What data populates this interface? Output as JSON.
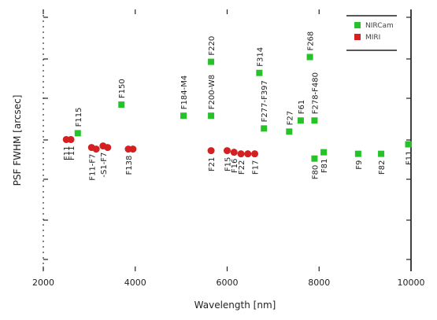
{
  "chart_data": {
    "type": "scatter",
    "xlabel": "Wavelength [nm]",
    "ylabel": "PSF FWHM [arcsec]",
    "x_ticks": [
      {
        "value": 2000,
        "label": "2000"
      },
      {
        "value": 4000,
        "label": "4000"
      },
      {
        "value": 6000,
        "label": "6000"
      },
      {
        "value": 8000,
        "label": "8000"
      },
      {
        "value": 10000,
        "label": "10000"
      }
    ],
    "xlim": [
      2000,
      10000
    ],
    "ylim": [
      -0.9,
      0.75
    ],
    "y_ticks": [],
    "series": [
      {
        "name": "NIRCam",
        "color": "#27c22a",
        "marker": "square",
        "points": [
          {
            "x": 2750,
            "y": -0.03,
            "label": "F115"
          },
          {
            "x": 3700,
            "y": 0.15,
            "label": "F150"
          },
          {
            "x": 5050,
            "y": 0.08,
            "label": "F184-M4"
          },
          {
            "x": 5650,
            "y": 0.08,
            "label": "F200-W8"
          },
          {
            "x": 5650,
            "y": 0.42,
            "label": "F220"
          },
          {
            "x": 6700,
            "y": 0.35,
            "label": "F314"
          },
          {
            "x": 6800,
            "y": 0.0,
            "label": "F277-F397"
          },
          {
            "x": 7350,
            "y": -0.02,
            "label": "F27"
          },
          {
            "x": 7600,
            "y": 0.05,
            "label": "F61"
          },
          {
            "x": 7800,
            "y": 0.45,
            "label": "F268"
          },
          {
            "x": 7900,
            "y": 0.05,
            "label": "F278-F480"
          },
          {
            "x": 7900,
            "y": -0.19,
            "label": "F80"
          },
          {
            "x": 8100,
            "y": -0.15,
            "label": "F81"
          },
          {
            "x": 8850,
            "y": -0.16,
            "label": "F9"
          },
          {
            "x": 9350,
            "y": -0.16,
            "label": "F82"
          },
          {
            "x": 9940,
            "y": -0.1,
            "label": "F11"
          }
        ]
      },
      {
        "name": "MIRI",
        "color": "#d42020",
        "marker": "circle",
        "points": [
          {
            "x": 2500,
            "y": -0.07,
            "label": "F11"
          },
          {
            "x": 2600,
            "y": -0.07,
            "label": "F11"
          },
          {
            "x": 3050,
            "y": -0.12,
            "label": "F11-F7"
          },
          {
            "x": 3150,
            "y": -0.13,
            "label": ""
          },
          {
            "x": 3300,
            "y": -0.11,
            "label": "-S1-F7"
          },
          {
            "x": 3400,
            "y": -0.12,
            "label": ""
          },
          {
            "x": 3850,
            "y": -0.13,
            "label": "F138"
          },
          {
            "x": 3950,
            "y": -0.13,
            "label": ""
          },
          {
            "x": 5650,
            "y": -0.14,
            "label": "F21"
          },
          {
            "x": 6000,
            "y": -0.14,
            "label": "F15"
          },
          {
            "x": 6150,
            "y": -0.15,
            "label": "F16"
          },
          {
            "x": 6300,
            "y": -0.16,
            "label": "F22"
          },
          {
            "x": 6450,
            "y": -0.16,
            "label": ""
          },
          {
            "x": 6600,
            "y": -0.16,
            "label": "F17"
          }
        ]
      }
    ],
    "legend": {
      "position": "top-right",
      "entries": [
        {
          "label": "NIRCam",
          "color": "#27c22a",
          "marker": "square"
        },
        {
          "label": "MIRI",
          "color": "#d42020",
          "marker": "circle"
        }
      ]
    },
    "grid": false
  }
}
